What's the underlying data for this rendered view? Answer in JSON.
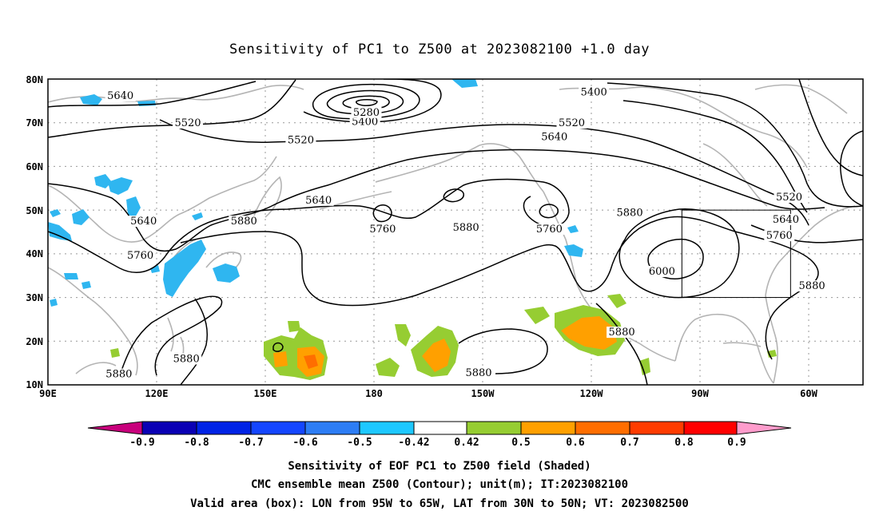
{
  "title": "Sensitivity of PC1 to Z500 at 2023082100 +1.0 day",
  "map": {
    "lat_ticks": [
      "80N",
      "70N",
      "60N",
      "50N",
      "40N",
      "30N",
      "20N",
      "10N"
    ],
    "lon_ticks": [
      "90E",
      "120E",
      "150E",
      "180",
      "150W",
      "120W",
      "90W",
      "60W"
    ],
    "lon_range_deg_east": [
      90,
      315
    ],
    "lat_range": [
      10,
      80
    ],
    "valid_box": {
      "lon_w": -95,
      "lon_e": -65,
      "lat_s": 30,
      "lat_n": 50
    },
    "contour_labels": [
      {
        "text": "5640",
        "lon": 110.0,
        "lat": 75.6
      },
      {
        "text": "5520",
        "lon": 128.6,
        "lat": 69.4
      },
      {
        "text": "5520",
        "lon": 159.8,
        "lat": 65.5
      },
      {
        "text": "5400",
        "lon": 177.5,
        "lat": 69.7
      },
      {
        "text": "5280",
        "lon": 177.9,
        "lat": 71.8
      },
      {
        "text": "5400",
        "lon": 240.7,
        "lat": 76.4
      },
      {
        "text": "5520",
        "lon": 234.6,
        "lat": 69.4
      },
      {
        "text": "5640",
        "lon": 229.8,
        "lat": 66.2
      },
      {
        "text": "5640",
        "lon": 164.7,
        "lat": 51.7
      },
      {
        "text": "5640",
        "lon": 116.4,
        "lat": 46.9
      },
      {
        "text": "5880",
        "lon": 144.1,
        "lat": 46.9
      },
      {
        "text": "5760",
        "lon": 115.5,
        "lat": 39.1
      },
      {
        "text": "5760",
        "lon": 182.4,
        "lat": 45.1
      },
      {
        "text": "5880",
        "lon": 205.4,
        "lat": 45.5
      },
      {
        "text": "5760",
        "lon": 228.4,
        "lat": 45.1
      },
      {
        "text": "5880",
        "lon": 250.6,
        "lat": 48.8
      },
      {
        "text": "5520",
        "lon": 294.6,
        "lat": 52.4
      },
      {
        "text": "5640",
        "lon": 293.7,
        "lat": 47.3
      },
      {
        "text": "5760",
        "lon": 291.9,
        "lat": 43.6
      },
      {
        "text": "6000",
        "lon": 259.5,
        "lat": 35.4
      },
      {
        "text": "5880",
        "lon": 300.9,
        "lat": 32.1
      },
      {
        "text": "5880",
        "lon": 248.4,
        "lat": 21.5
      },
      {
        "text": "5880",
        "lon": 128.2,
        "lat": 15.4
      },
      {
        "text": "5880",
        "lon": 109.6,
        "lat": 11.9
      },
      {
        "text": "5880",
        "lon": 208.9,
        "lat": 12.2
      }
    ]
  },
  "colorbar": {
    "labels": [
      "-0.9",
      "-0.8",
      "-0.7",
      "-0.6",
      "-0.5",
      "-0.42",
      "0.42",
      "0.5",
      "0.6",
      "0.7",
      "0.8",
      "0.9"
    ],
    "colors": [
      "#c8007c",
      "#0a00b4",
      "#0023e6",
      "#1446ff",
      "#2d7df5",
      "#1ec8ff",
      "#ffffff",
      "#96cd32",
      "#ffa000",
      "#ff6e00",
      "#ff3c00",
      "#ff0000",
      "#ff9ccc"
    ]
  },
  "footer": {
    "line1": "Sensitivity of EOF PC1 to Z500 field (Shaded)",
    "line2": "CMC ensemble mean Z500 (Contour); unit(m); IT:2023082100",
    "line3": "Valid area (box): LON from 95W to 65W, LAT from 30N to 50N; VT: 2023082500"
  }
}
